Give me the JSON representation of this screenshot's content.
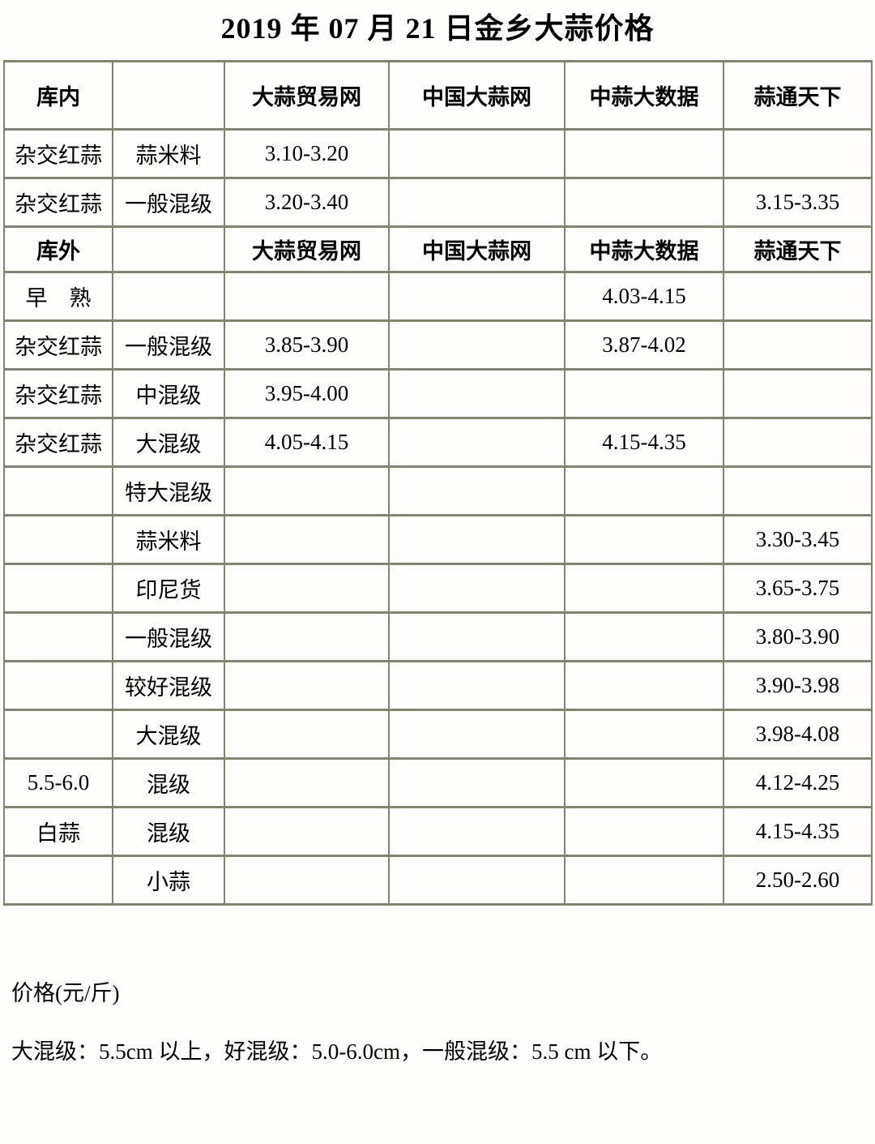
{
  "title": "2019 年 07 月 21 日金乡大蒜价格",
  "colors": {
    "table_border": "#84846e",
    "text": "#000000",
    "background": "#fffefc"
  },
  "table": {
    "sections": [
      {
        "header": {
          "label": "库内",
          "cols": [
            "大蒜贸易网",
            "中国大蒜网",
            "中蒜大数据",
            "蒜通天下"
          ]
        },
        "rows": [
          [
            "杂交红蒜",
            "蒜米料",
            "3.10-3.20",
            "",
            "",
            ""
          ],
          [
            "杂交红蒜",
            "一般混级",
            "3.20-3.40",
            "",
            "",
            "3.15-3.35"
          ]
        ]
      },
      {
        "header": {
          "label": "库外",
          "cols": [
            "大蒜贸易网",
            "中国大蒜网",
            "中蒜大数据",
            "蒜通天下"
          ]
        },
        "rows": [
          [
            "早　熟",
            "",
            "",
            "",
            "4.03-4.15",
            ""
          ],
          [
            "杂交红蒜",
            "一般混级",
            "3.85-3.90",
            "",
            "3.87-4.02",
            ""
          ],
          [
            "杂交红蒜",
            "中混级",
            "3.95-4.00",
            "",
            "",
            ""
          ],
          [
            "杂交红蒜",
            "大混级",
            "4.05-4.15",
            "",
            "4.15-4.35",
            ""
          ],
          [
            "",
            "特大混级",
            "",
            "",
            "",
            ""
          ],
          [
            "",
            "蒜米料",
            "",
            "",
            "",
            "3.30-3.45"
          ],
          [
            "",
            "印尼货",
            "",
            "",
            "",
            "3.65-3.75"
          ],
          [
            "",
            "一般混级",
            "",
            "",
            "",
            "3.80-3.90"
          ],
          [
            "",
            "较好混级",
            "",
            "",
            "",
            "3.90-3.98"
          ],
          [
            "",
            "大混级",
            "",
            "",
            "",
            "3.98-4.08"
          ],
          [
            "5.5-6.0",
            "混级",
            "",
            "",
            "",
            "4.12-4.25"
          ],
          [
            "白蒜",
            "混级",
            "",
            "",
            "",
            "4.15-4.35"
          ],
          [
            "",
            "小蒜",
            "",
            "",
            "",
            "2.50-2.60"
          ]
        ]
      }
    ]
  },
  "footer": {
    "unit": "价格(元/斤)",
    "note": "大混级：5.5cm 以上，好混级：5.0-6.0cm，一般混级：5.5 cm 以下。"
  }
}
